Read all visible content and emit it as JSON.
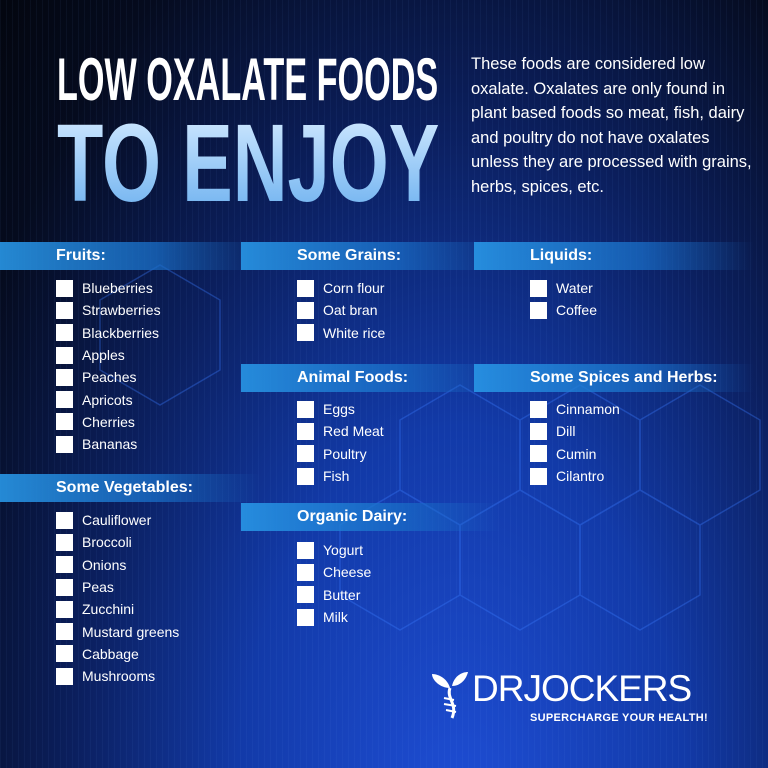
{
  "title": {
    "line1": "LOW OXALATE FOODS",
    "line2": "TO ENJOY"
  },
  "intro": "These foods are considered low oxalate. Oxalates are only found in plant based foods so meat, fish, dairy and poultry do not have oxalates unless they are processed with grains, herbs, spices, etc.",
  "sections": {
    "fruits": {
      "label": "Fruits:",
      "items": [
        "Blueberries",
        "Strawberries",
        "Blackberries",
        "Apples",
        "Peaches",
        "Apricots",
        "Cherries",
        "Bananas"
      ]
    },
    "vegetables": {
      "label": "Some Vegetables:",
      "items": [
        "Cauliflower",
        "Broccoli",
        "Onions",
        "Peas",
        "Zucchini",
        "Mustard greens",
        "Cabbage",
        "Mushrooms"
      ]
    },
    "grains": {
      "label": "Some Grains:",
      "items": [
        "Corn flour",
        "Oat bran",
        "White rice"
      ]
    },
    "animal": {
      "label": "Animal Foods:",
      "items": [
        "Eggs",
        "Red Meat",
        "Poultry",
        "Fish"
      ]
    },
    "dairy": {
      "label": "Organic Dairy:",
      "items": [
        "Yogurt",
        "Cheese",
        "Butter",
        "Milk"
      ]
    },
    "liquids": {
      "label": "Liquids:",
      "items": [
        "Water",
        "Coffee"
      ]
    },
    "spices": {
      "label": "Some Spices and Herbs:",
      "items": [
        "Cinnamon",
        "Dill",
        "Cumin",
        "Cilantro"
      ]
    }
  },
  "logo": {
    "name": "DRJOCKERS",
    "tagline": "SUPERCHARGE YOUR HEALTH!",
    "icon": "leaf-dna-icon"
  },
  "colors": {
    "accent": "#2a96e6",
    "title_blue": "#9fd0ff"
  }
}
